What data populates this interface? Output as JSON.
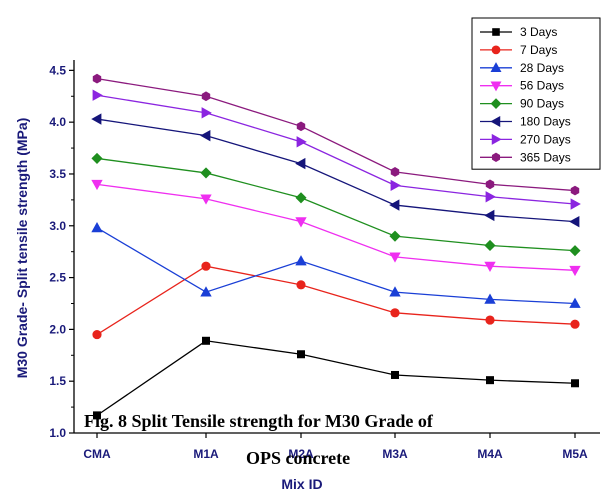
{
  "chart_data": {
    "type": "line",
    "categories": [
      "CMA",
      "M1A",
      "M2A",
      "M3A",
      "M4A",
      "M5A"
    ],
    "xlabel": "Mix ID",
    "ylabel": "M30 Grade- Split tensile strength (MPa)",
    "ylim": [
      1.0,
      4.6
    ],
    "yticks": [
      "1.0",
      "1.5",
      "2.0",
      "2.5",
      "3.0",
      "3.5",
      "4.0",
      "4.5"
    ],
    "yticks_values": [
      1.0,
      1.5,
      2.0,
      2.5,
      3.0,
      3.5,
      4.0,
      4.5
    ],
    "grid": false,
    "legend_position": "top-right",
    "series": [
      {
        "name": "3 Days",
        "color": "#000000",
        "marker": "square",
        "values": [
          1.17,
          1.89,
          1.76,
          1.56,
          1.51,
          1.48
        ]
      },
      {
        "name": "7 Days",
        "color": "#e8241c",
        "marker": "circle",
        "values": [
          1.95,
          2.61,
          2.43,
          2.16,
          2.09,
          2.05
        ]
      },
      {
        "name": "28 Days",
        "color": "#1a3fd6",
        "marker": "triangle-up",
        "values": [
          2.98,
          2.36,
          2.66,
          2.36,
          2.29,
          2.25
        ]
      },
      {
        "name": "56 Days",
        "color": "#ef2ff0",
        "marker": "triangle-down",
        "values": [
          3.4,
          3.26,
          3.04,
          2.7,
          2.61,
          2.57
        ]
      },
      {
        "name": "90 Days",
        "color": "#1f8f1f",
        "marker": "diamond",
        "values": [
          3.65,
          3.51,
          3.27,
          2.9,
          2.81,
          2.76
        ]
      },
      {
        "name": "180 Days",
        "color": "#15157a",
        "marker": "triangle-left",
        "values": [
          4.03,
          3.87,
          3.6,
          3.2,
          3.1,
          3.04
        ]
      },
      {
        "name": "270 Days",
        "color": "#8b25e0",
        "marker": "triangle-right",
        "values": [
          4.26,
          4.09,
          3.81,
          3.39,
          3.28,
          3.21
        ]
      },
      {
        "name": "365 Days",
        "color": "#8b1a7e",
        "marker": "hexagon",
        "values": [
          4.42,
          4.25,
          3.96,
          3.52,
          3.4,
          3.34
        ]
      }
    ]
  },
  "caption": {
    "line1": "Fig. 8 Split Tensile strength for M30 Grade of",
    "line2": "OPS concrete"
  }
}
